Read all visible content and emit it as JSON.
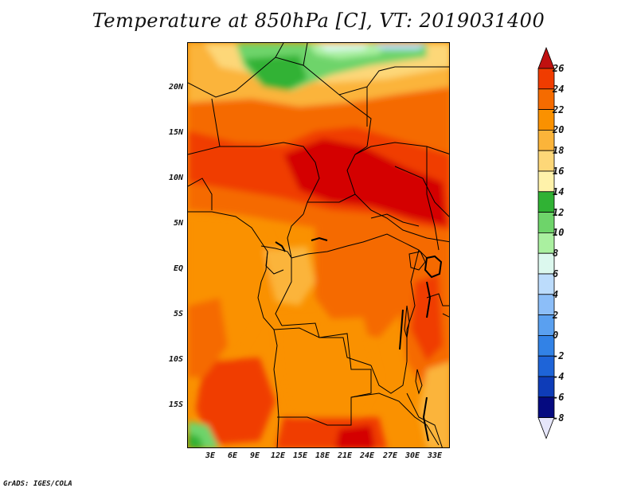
{
  "title": "Temperature at 850hPa [C], VT: 2019031400",
  "credit": "GrADS: IGES/COLA",
  "map": {
    "lat_ticks": [
      "20N",
      "15N",
      "10N",
      "5N",
      "EQ",
      "5S",
      "10S",
      "15S"
    ],
    "lon_ticks": [
      "3E",
      "6E",
      "9E",
      "12E",
      "15E",
      "18E",
      "21E",
      "24E",
      "27E",
      "30E",
      "33E"
    ]
  },
  "colorbar": {
    "labels": [
      "26",
      "24",
      "22",
      "20",
      "18",
      "16",
      "14",
      "12",
      "10",
      "8",
      "6",
      "4",
      "2",
      "0",
      "-2",
      "-4",
      "-6",
      "-8"
    ],
    "colors": [
      "#d40000",
      "#f03c00",
      "#f56b00",
      "#fa9100",
      "#fbb43a",
      "#fdd778",
      "#fff2aa",
      "#30b234",
      "#6ed46a",
      "#aaf0a0",
      "#dcf8ee",
      "#bcdcfc",
      "#8cbef8",
      "#5aa0f0",
      "#3282e6",
      "#1e64d8",
      "#0e3cb8",
      "#050a80"
    ],
    "low_cap_color": "#e6e6fa",
    "high_cap_color": "#c01010"
  }
}
